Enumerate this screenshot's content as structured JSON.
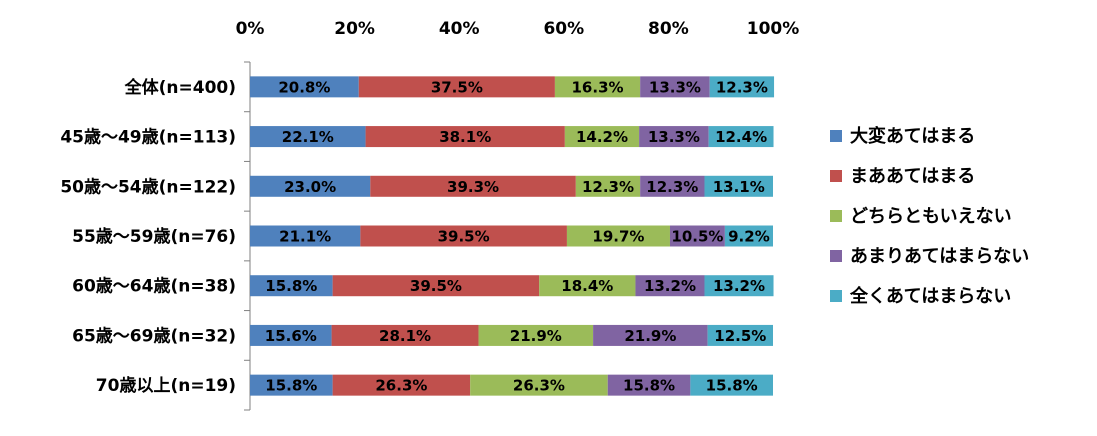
{
  "chart_data": {
    "type": "bar",
    "orientation": "horizontal",
    "stacked": "percent",
    "categories": [
      "全体(n=400)",
      "45歳～49歳(n=113)",
      "50歳～54歳(n=122)",
      "55歳～59歳(n=76)",
      "60歳～64歳(n=38)",
      "65歳～69歳(n=32)",
      "70歳以上(n=19)"
    ],
    "series": [
      {
        "name": "大変あてはまる",
        "color": "#4f81bd",
        "values": [
          20.8,
          22.1,
          23.0,
          21.1,
          15.8,
          15.6,
          15.8
        ],
        "labels": [
          "20.8%",
          "22.1%",
          "23.0%",
          "21.1%",
          "15.8%",
          "15.6%",
          "15.8%"
        ]
      },
      {
        "name": "まああてはまる",
        "color": "#c0504d",
        "values": [
          37.5,
          38.1,
          39.3,
          39.5,
          39.5,
          28.1,
          26.3
        ],
        "labels": [
          "37.5%",
          "38.1%",
          "39.3%",
          "39.5%",
          "39.5%",
          "28.1%",
          "26.3%"
        ]
      },
      {
        "name": "どちらともいえない",
        "color": "#9bbb59",
        "values": [
          16.3,
          14.2,
          12.3,
          19.7,
          18.4,
          21.9,
          26.3
        ],
        "labels": [
          "16.3%",
          "14.2%",
          "12.3%",
          "19.7%",
          "18.4%",
          "21.9%",
          "26.3%"
        ]
      },
      {
        "name": "あまりあてはまらない",
        "color": "#8064a2",
        "values": [
          13.3,
          13.3,
          12.3,
          10.5,
          13.2,
          21.9,
          15.8
        ],
        "labels": [
          "13.3%",
          "13.3%",
          "12.3%",
          "10.5%",
          "13.2%",
          "21.9%",
          "15.8%"
        ]
      },
      {
        "name": "全くあてはまらない",
        "color": "#4bacc6",
        "values": [
          12.3,
          12.4,
          13.1,
          9.2,
          13.2,
          12.5,
          15.8
        ],
        "labels": [
          "12.3%",
          "12.4%",
          "13.1%",
          "9.2%",
          "13.2%",
          "12.5%",
          "15.8%"
        ]
      }
    ],
    "xlim": [
      0,
      100
    ],
    "xticks": [
      "0%",
      "20%",
      "40%",
      "60%",
      "80%",
      "100%"
    ],
    "grid": false,
    "legend_position": "right"
  }
}
